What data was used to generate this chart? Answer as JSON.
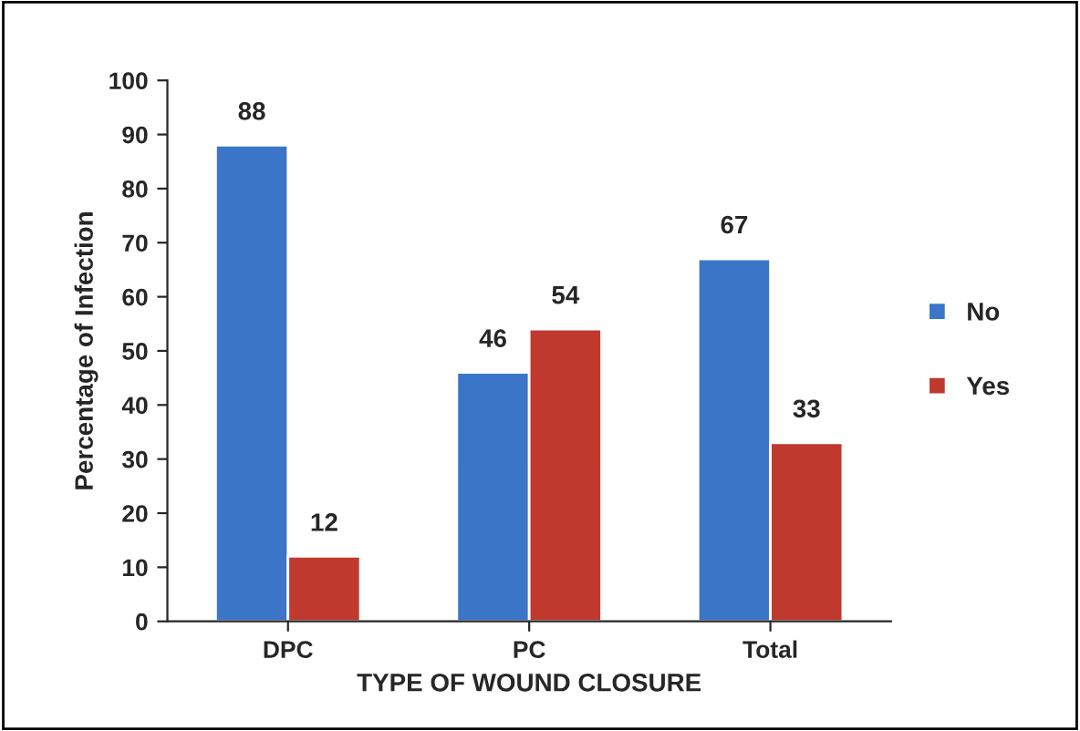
{
  "chart_data": {
    "type": "bar",
    "xlabel": "TYPE OF WOUND CLOSURE",
    "ylabel": "Percentage of Infection",
    "categories": [
      "DPC",
      "PC",
      "Total"
    ],
    "series": [
      {
        "name": "No",
        "color": "#3a75c8",
        "values": [
          88,
          46,
          67
        ]
      },
      {
        "name": "Yes",
        "color": "#c0392f",
        "values": [
          12,
          54,
          33
        ]
      }
    ],
    "ylim": [
      0,
      100
    ],
    "yticks": [
      0,
      10,
      20,
      30,
      40,
      50,
      60,
      70,
      80,
      90,
      100
    ],
    "data_labels": true,
    "grid": false,
    "legend": "right"
  }
}
